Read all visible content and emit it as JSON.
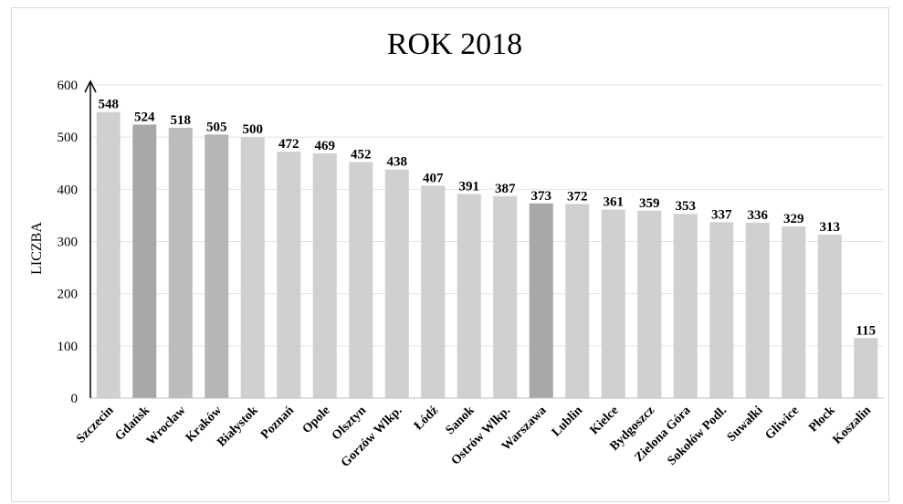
{
  "chart_data": {
    "type": "bar",
    "title": "ROK 2018",
    "xlabel": "",
    "ylabel": "LICZBA",
    "ylim": [
      0,
      600
    ],
    "yticks": [
      0,
      100,
      200,
      300,
      400,
      500,
      600
    ],
    "grid": true,
    "legend": "none",
    "categories": [
      "Szczecin",
      "Gdańsk",
      "Wrocław",
      "Kraków",
      "Białystok",
      "Poznań",
      "Opole",
      "Olsztyn",
      "Gorzów Wlkp.",
      "Łódź",
      "Sanok",
      "Ostrów Wlkp.",
      "Warszawa",
      "Lublin",
      "Kielce",
      "Bydgoszcz",
      "Zielona Góra",
      "Sokołów Podl.",
      "Suwałki",
      "Gliwice",
      "Płock",
      "Koszalin"
    ],
    "values": [
      548,
      524,
      518,
      505,
      500,
      472,
      469,
      452,
      438,
      407,
      391,
      387,
      373,
      372,
      361,
      359,
      353,
      337,
      336,
      329,
      313,
      115
    ],
    "bar_colors": [
      "#d0d0d0",
      "#a8a8a8",
      "#bcbcbc",
      "#b6b6b6",
      "#d0d0d0",
      "#d0d0d0",
      "#d0d0d0",
      "#d0d0d0",
      "#d0d0d0",
      "#d0d0d0",
      "#d0d0d0",
      "#d0d0d0",
      "#a8a8a8",
      "#d0d0d0",
      "#d0d0d0",
      "#d0d0d0",
      "#d0d0d0",
      "#d0d0d0",
      "#d0d0d0",
      "#d0d0d0",
      "#d0d0d0",
      "#d0d0d0"
    ],
    "gridline_color": "#e4e4e4",
    "axis_color": "#000000"
  }
}
